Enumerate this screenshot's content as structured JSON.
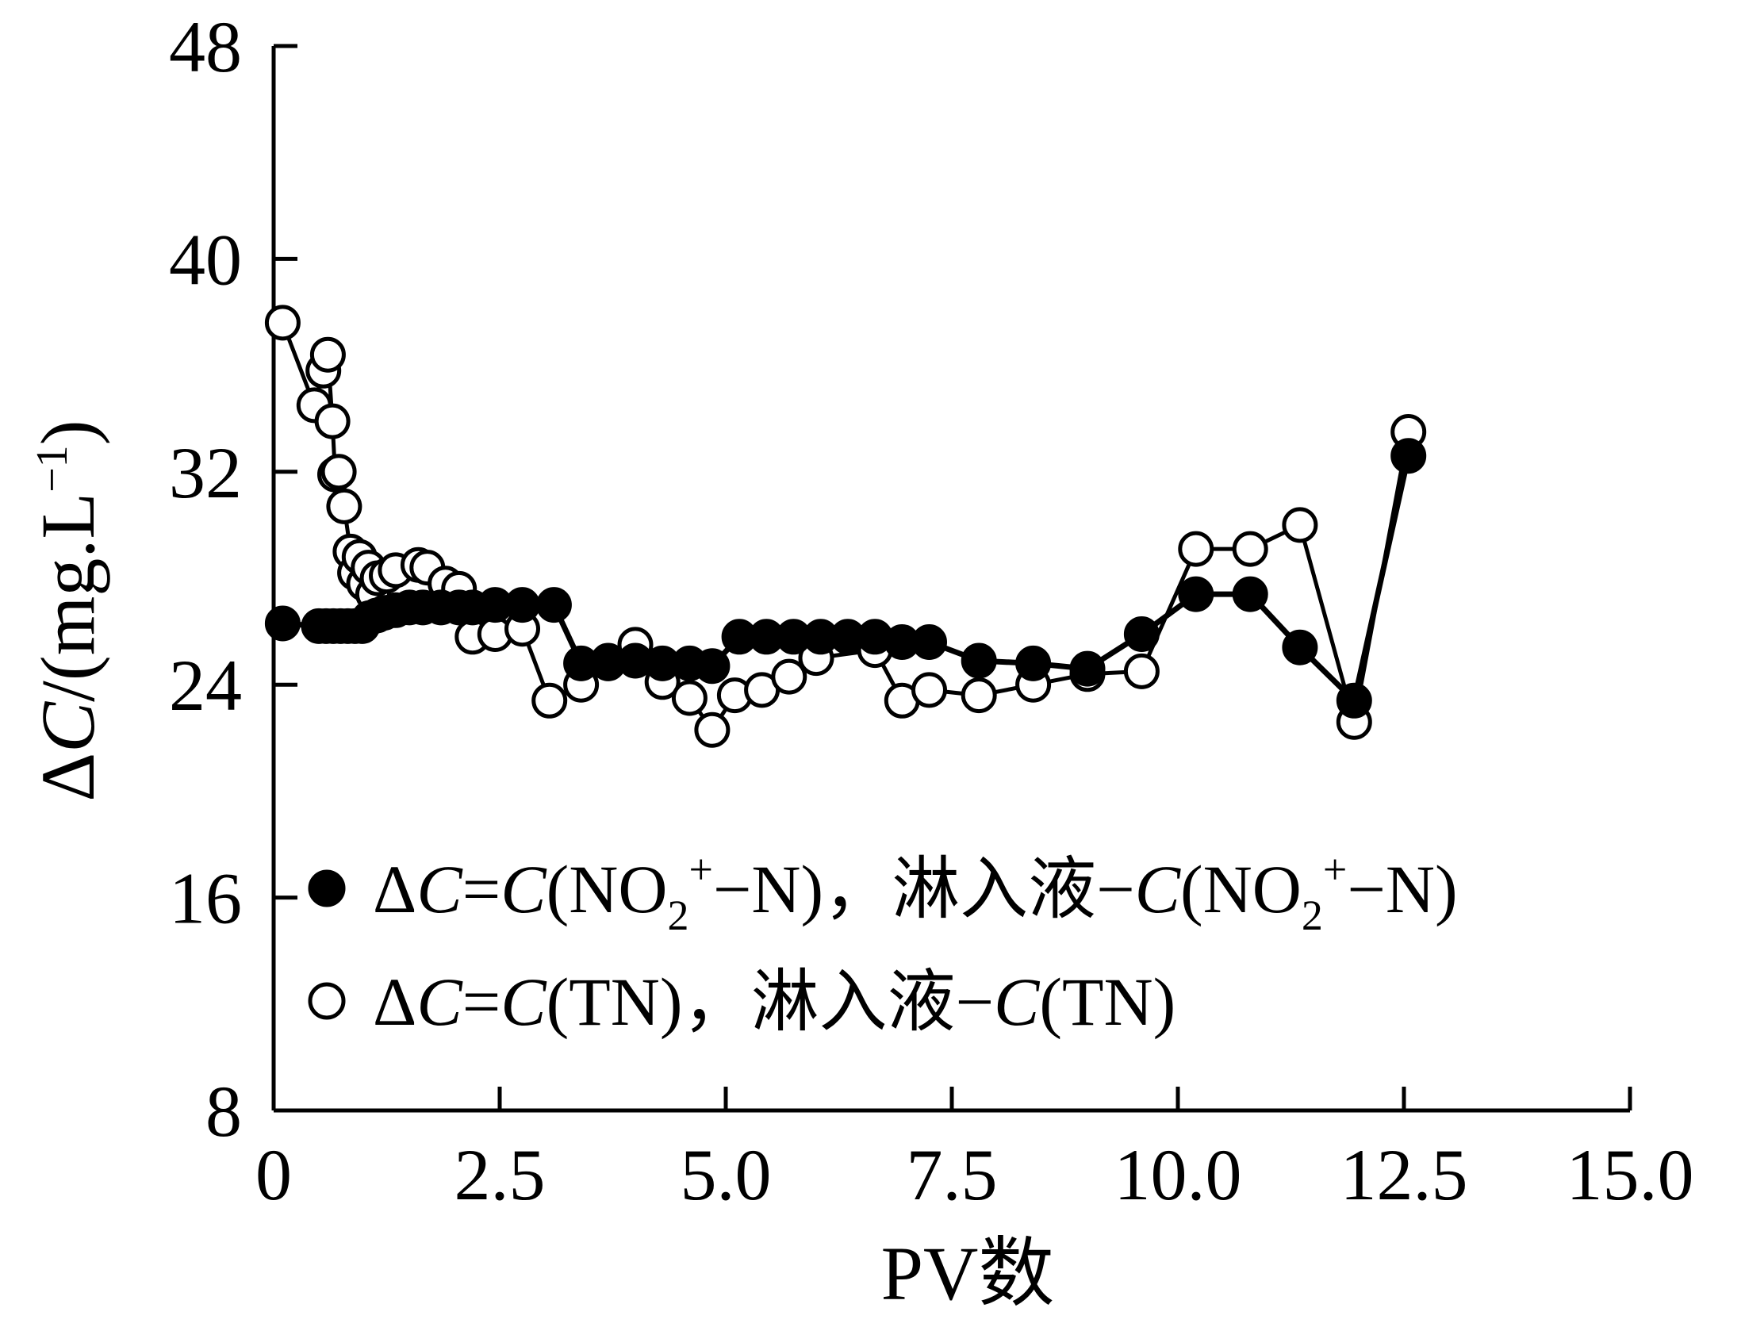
{
  "chart_data": {
    "type": "line",
    "xlabel": "PV数",
    "ylabel": "ΔC/(mg.L⁻¹)",
    "ylabel_parts": {
      "delta": "Δ",
      "var": "C",
      "unit": "/(mg.L",
      "sup": "−1",
      "close": ")"
    },
    "xlim": [
      0,
      15
    ],
    "ylim": [
      8,
      48
    ],
    "xticks": [
      0,
      2.5,
      5.0,
      7.5,
      10.0,
      12.5,
      15.0
    ],
    "xtick_labels": [
      "0",
      "2.5",
      "5.0",
      "7.5",
      "10.0",
      "12.5",
      "15.0"
    ],
    "yticks": [
      8,
      16,
      24,
      32,
      40,
      48
    ],
    "ytick_labels": [
      "8",
      "16",
      "24",
      "32",
      "40",
      "48"
    ],
    "legend_position": "bottom-left inside",
    "series": [
      {
        "name": "ΔC=C(NO2+−N)，淋入液−C(NO2+−N)",
        "legend": {
          "p1": "Δ",
          "p2": "C",
          "p3": "=",
          "p4": "C",
          "p5": "(NO",
          "sub": "2",
          "sup": "+",
          "p6": "−N)，淋入液−",
          "p7": "C",
          "p8": "(NO",
          "sub2": "2",
          "sup2": "+",
          "p9": "−N)"
        },
        "marker": "filled-circle",
        "x": [
          0.1,
          0.5,
          0.58,
          0.66,
          0.74,
          0.82,
          0.9,
          0.98,
          1.06,
          1.14,
          1.22,
          1.35,
          1.5,
          1.65,
          1.85,
          2.05,
          2.2,
          2.45,
          2.75,
          3.1,
          3.4,
          3.7,
          4.0,
          4.3,
          4.6,
          4.85,
          5.15,
          5.45,
          5.75,
          6.05,
          6.35,
          6.65,
          6.95,
          7.25,
          7.8,
          8.4,
          9.0,
          9.6,
          10.2,
          10.8,
          11.35,
          11.95,
          12.55
        ],
        "y": [
          26.3,
          26.2,
          26.2,
          26.2,
          26.2,
          26.2,
          26.2,
          26.2,
          26.5,
          26.6,
          26.7,
          26.8,
          26.9,
          26.9,
          26.9,
          26.9,
          26.9,
          27.0,
          27.0,
          27.0,
          24.8,
          24.8,
          24.9,
          24.8,
          24.8,
          24.7,
          25.8,
          25.8,
          25.8,
          25.8,
          25.8,
          25.8,
          25.6,
          25.6,
          24.9,
          24.8,
          24.6,
          25.9,
          27.4,
          27.4,
          25.4,
          23.4,
          32.6
        ]
      },
      {
        "name": "ΔC=C(TN)，淋入液−C(TN)",
        "legend": {
          "p1": "Δ",
          "p2": "C",
          "p3": "=",
          "p4": "C",
          "p5": "(TN)，淋入液−",
          "p6": "C",
          "p7": "(TN)"
        },
        "marker": "open-circle",
        "x": [
          0.1,
          0.45,
          0.55,
          0.6,
          0.65,
          0.68,
          0.72,
          0.78,
          0.85,
          0.9,
          0.95,
          1.0,
          1.05,
          1.1,
          1.15,
          1.25,
          1.35,
          1.6,
          1.7,
          1.9,
          2.05,
          2.2,
          2.45,
          2.75,
          3.05,
          3.4,
          3.7,
          4.0,
          4.3,
          4.6,
          4.85,
          5.1,
          5.4,
          5.7,
          6.0,
          6.65,
          6.95,
          7.25,
          7.8,
          8.4,
          9.0,
          9.6,
          10.2,
          10.8,
          11.35,
          11.95,
          12.55
        ],
        "y": [
          37.6,
          34.5,
          35.8,
          36.4,
          33.9,
          31.9,
          32.0,
          30.7,
          29.0,
          28.2,
          28.8,
          27.8,
          28.4,
          27.4,
          28.0,
          28.1,
          28.3,
          28.5,
          28.4,
          27.8,
          27.6,
          25.8,
          25.9,
          26.1,
          23.4,
          24.0,
          24.9,
          25.5,
          24.1,
          23.5,
          22.3,
          23.6,
          23.8,
          24.3,
          25.0,
          25.3,
          23.4,
          23.8,
          23.6,
          24.0,
          24.4,
          24.5,
          29.1,
          29.1,
          30.0,
          22.6,
          33.5
        ]
      }
    ]
  }
}
